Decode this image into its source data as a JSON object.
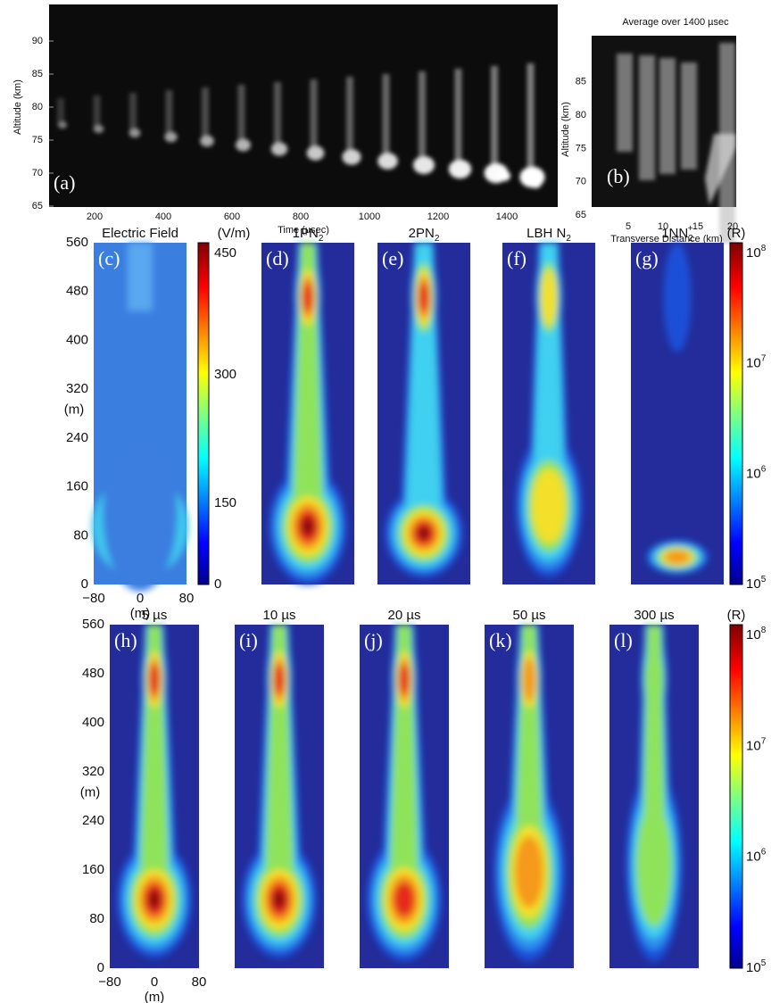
{
  "panel_a": {
    "label": "(a)",
    "y_label": "Altitude (km)",
    "x_label": "Time (µsec)",
    "yticks": [
      "65",
      "70",
      "75",
      "80",
      "85",
      "90"
    ],
    "xticks": [
      "200",
      "400",
      "600",
      "800",
      "1000",
      "1200",
      "1400"
    ]
  },
  "panel_b": {
    "title": "Average over 1400 µsec",
    "label": "(b)",
    "y_label": "Altitude (km)",
    "x_label": "Transverse Distance (km)",
    "yticks": [
      "65",
      "70",
      "75",
      "80",
      "85"
    ],
    "xticks": [
      "5",
      "10",
      "15",
      "20"
    ]
  },
  "middle_row": {
    "y_label": "(m)",
    "x_label": "(m)",
    "yticks": [
      "0",
      "80",
      "160",
      "240",
      "320",
      "400",
      "480",
      "560"
    ],
    "xticks": [
      "−80",
      "0",
      "80"
    ],
    "panels": [
      {
        "label": "(c)",
        "title": "Electric Field"
      },
      {
        "label": "(d)",
        "title": "1PN",
        "sub": "2"
      },
      {
        "label": "(e)",
        "title": "2PN",
        "sub": "2"
      },
      {
        "label": "(f)",
        "title": "LBH N",
        "sub": "2"
      },
      {
        "label": "(g)",
        "title": "1NN",
        "sub": "2",
        "sup": "+"
      }
    ],
    "field_colorbar": {
      "unit": "(V/m)",
      "ticks": [
        "0",
        "150",
        "300",
        "450"
      ]
    },
    "colorbar": {
      "unit": "(R)",
      "ticks": [
        {
          "base": "10",
          "exp": "5"
        },
        {
          "base": "10",
          "exp": "6"
        },
        {
          "base": "10",
          "exp": "7"
        },
        {
          "base": "10",
          "exp": "8"
        }
      ]
    }
  },
  "bottom_row": {
    "y_label": "(m)",
    "x_label": "(m)",
    "yticks": [
      "0",
      "80",
      "160",
      "240",
      "320",
      "400",
      "480",
      "560"
    ],
    "xticks": [
      "−80",
      "0",
      "80"
    ],
    "panels": [
      {
        "label": "(h)",
        "title": "5 µs"
      },
      {
        "label": "(i)",
        "title": "10 µs"
      },
      {
        "label": "(j)",
        "title": "20 µs"
      },
      {
        "label": "(k)",
        "title": "50 µs"
      },
      {
        "label": "(l)",
        "title": "300 µs"
      }
    ],
    "colorbar": {
      "unit": "(R)",
      "ticks": [
        {
          "base": "10",
          "exp": "5"
        },
        {
          "base": "10",
          "exp": "6"
        },
        {
          "base": "10",
          "exp": "7"
        },
        {
          "base": "10",
          "exp": "8"
        }
      ]
    }
  }
}
